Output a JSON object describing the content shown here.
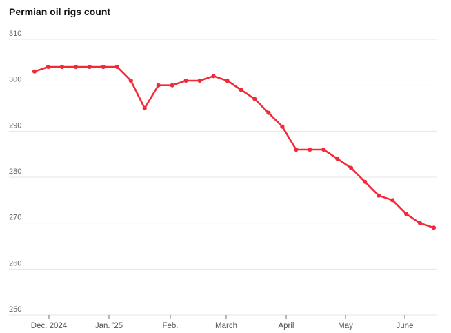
{
  "chart_data": {
    "type": "line",
    "title": "Permian oil rigs count",
    "xlabel": "",
    "ylabel": "",
    "frequency": "weekly",
    "x_axis": {
      "tick_labels": [
        "Dec. 2024",
        "Jan. ’25",
        "Feb.",
        "March",
        "April",
        "May",
        "June"
      ]
    },
    "y_axis": {
      "tick_labels": [
        "310",
        "300",
        "290",
        "280",
        "270",
        "260",
        "250"
      ],
      "range": [
        250,
        310
      ]
    },
    "series": [
      {
        "name": "Permian oil rigs count",
        "color": "#f22938",
        "values": [
          303,
          304,
          304,
          304,
          304,
          304,
          304,
          301,
          295,
          300,
          300,
          301,
          301,
          302,
          301,
          299,
          297,
          294,
          291,
          286,
          286,
          286,
          284,
          282,
          279,
          276,
          275,
          272,
          270,
          269
        ]
      }
    ],
    "style": {
      "grid": "horizontal",
      "legend": "none",
      "marker": "circle",
      "background": "#ffffff",
      "gridline_color": "#e6e6e6",
      "tick_mark_color": "#737373",
      "axis_text_color": "#555555",
      "title_color": "#141414"
    }
  }
}
